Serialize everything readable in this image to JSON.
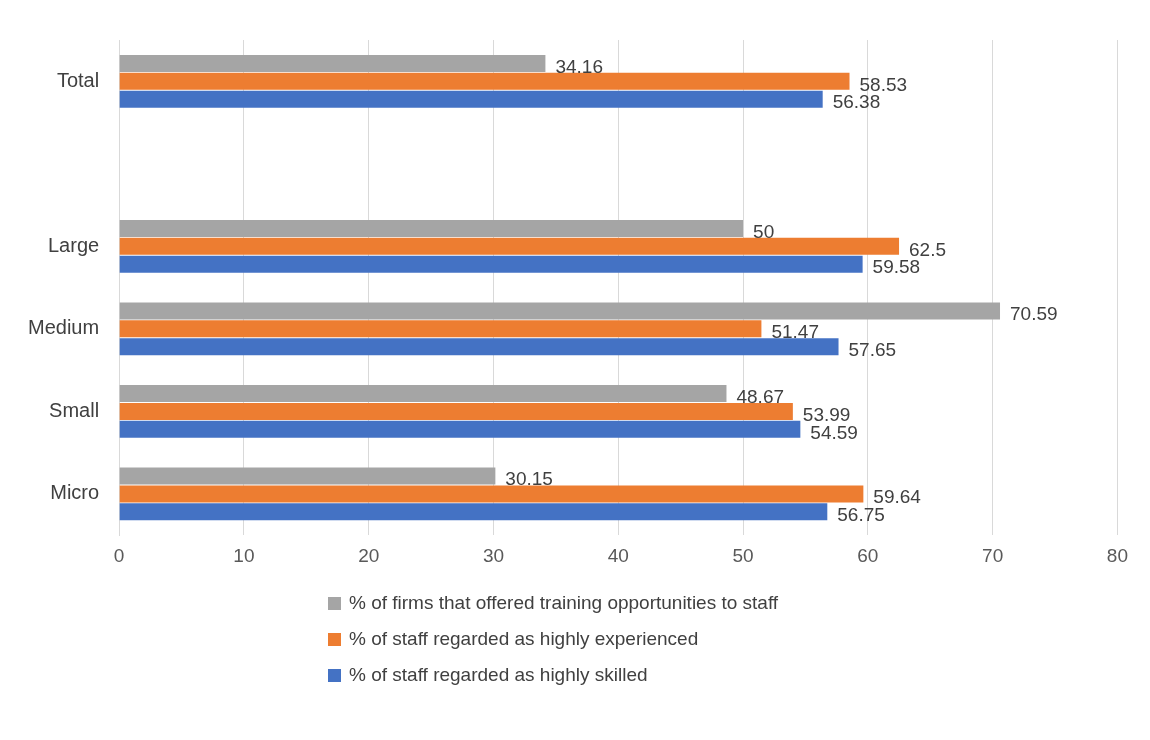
{
  "chart_data": {
    "type": "bar",
    "orientation": "horizontal",
    "categories": [
      "Total",
      null,
      "Large",
      "Medium",
      "Small",
      "Micro"
    ],
    "series": [
      {
        "name": "% of firms that offered training opportunities to staff",
        "color": "#a5a5a5",
        "values": [
          34.16,
          null,
          50,
          70.59,
          48.67,
          30.15
        ]
      },
      {
        "name": "% of staff regarded as highly experienced",
        "color": "#ed7d31",
        "values": [
          58.53,
          null,
          62.5,
          51.47,
          53.99,
          59.64
        ]
      },
      {
        "name": "% of staff regarded as highly skilled",
        "color": "#4472c4",
        "values": [
          56.38,
          null,
          59.58,
          57.65,
          54.59,
          56.75
        ]
      }
    ],
    "xlim": [
      0,
      80
    ],
    "xticks": [
      0,
      10,
      20,
      30,
      40,
      50,
      60,
      70,
      80
    ],
    "grid": "x",
    "legend": "bottom",
    "data_labels": true
  }
}
